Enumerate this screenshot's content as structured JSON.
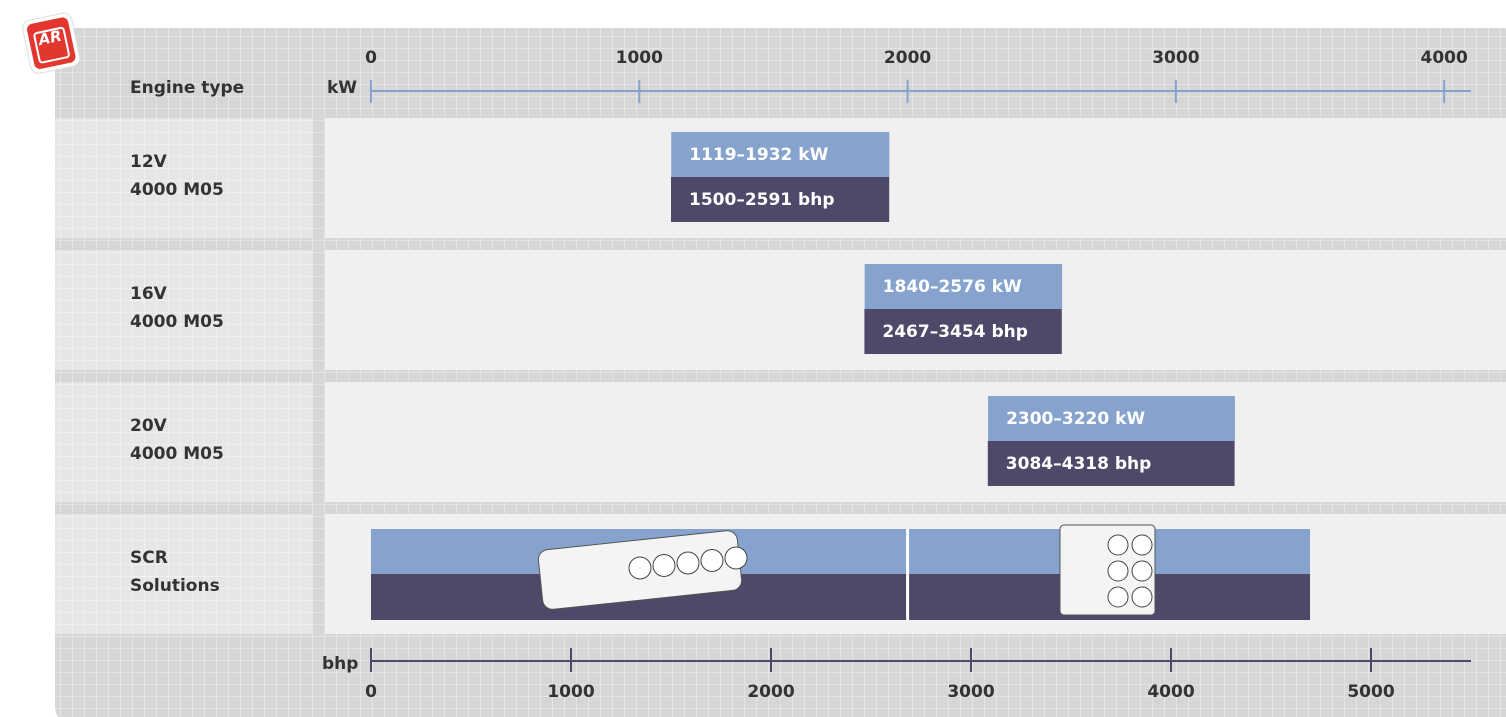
{
  "badge": "AR",
  "chart_data": {
    "type": "range",
    "header": "Engine type",
    "x_label": "kW",
    "x2_label": "bhp",
    "xlim": [
      0,
      4100
    ],
    "xticks": [
      0,
      1000,
      2000,
      3000,
      4000
    ],
    "x2lim": [
      0,
      5500
    ],
    "x2ticks": [
      0,
      1000,
      2000,
      3000,
      4000,
      5000
    ],
    "kw_color": "#86a3cd",
    "bhp_color": "#4f4868",
    "categories": [
      [
        "12V",
        "4000 M05"
      ],
      [
        "16V",
        "4000 M05"
      ],
      [
        "20V",
        "4000 M05"
      ],
      [
        "SCR",
        "Solutions"
      ]
    ],
    "ranges": [
      {
        "kw": [
          1119,
          1932
        ],
        "kw_label": "1119–1932 kW",
        "bhp": [
          1500,
          2591
        ],
        "bhp_label": "1500–2591 bhp"
      },
      {
        "kw": [
          1840,
          2576
        ],
        "kw_label": "1840–2576 kW",
        "bhp": [
          2467,
          3454
        ],
        "bhp_label": "2467–3454 bhp"
      },
      {
        "kw": [
          2300,
          3220
        ],
        "kw_label": "2300–3220 kW",
        "bhp": [
          3084,
          4318
        ],
        "bhp_label": "3084–4318 bhp"
      }
    ],
    "scr_segments": [
      [
        0,
        2000
      ],
      [
        2000,
        3500
      ]
    ]
  }
}
